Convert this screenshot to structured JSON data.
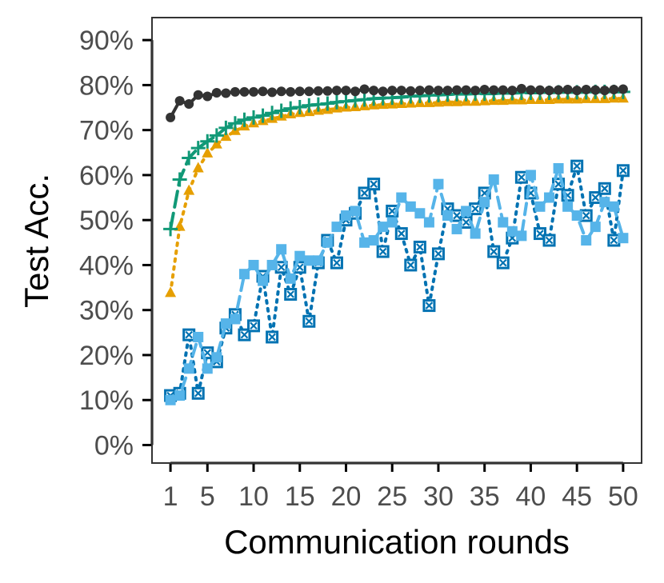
{
  "chart_data": {
    "type": "line",
    "title": "",
    "xlabel": "Communication rounds",
    "ylabel": "Test Acc.",
    "xlim": [
      -1,
      52
    ],
    "ylim": [
      -4,
      95
    ],
    "x_ticks": [
      1,
      5,
      10,
      15,
      20,
      25,
      30,
      35,
      40,
      45,
      50
    ],
    "y_ticks": [
      0,
      10,
      20,
      30,
      40,
      50,
      60,
      70,
      80,
      90
    ],
    "y_tick_labels": [
      "0%",
      "10%",
      "20%",
      "30%",
      "40%",
      "50%",
      "60%",
      "70%",
      "80%",
      "90%"
    ],
    "x": [
      1,
      2,
      3,
      4,
      5,
      6,
      7,
      8,
      9,
      10,
      11,
      12,
      13,
      14,
      15,
      16,
      17,
      18,
      19,
      20,
      21,
      22,
      23,
      24,
      25,
      26,
      27,
      28,
      29,
      30,
      31,
      32,
      33,
      34,
      35,
      36,
      37,
      38,
      39,
      40,
      41,
      42,
      43,
      44,
      45,
      46,
      47,
      48,
      49,
      50
    ],
    "series": [
      {
        "name": "black-circles",
        "color": "#333333",
        "marker": "circle",
        "dash": "solid",
        "values": [
          72.8,
          76.5,
          75.8,
          77.8,
          77.5,
          78.3,
          78.2,
          78.5,
          78.5,
          78.5,
          78.6,
          78.4,
          78.6,
          78.5,
          78.6,
          78.6,
          78.7,
          78.7,
          78.8,
          78.8,
          78.6,
          79.1,
          78.8,
          78.6,
          78.8,
          78.8,
          78.7,
          78.8,
          78.9,
          78.8,
          78.8,
          78.9,
          78.9,
          78.8,
          79.0,
          78.9,
          78.9,
          78.8,
          79.2,
          78.9,
          78.9,
          78.8,
          78.9,
          79.0,
          78.8,
          79.0,
          78.9,
          78.8,
          79.0,
          79.1
        ]
      },
      {
        "name": "green-crosses",
        "color": "#119977",
        "marker": "plus",
        "dash": "long-dash",
        "values": [
          48.0,
          59.0,
          63.8,
          66.0,
          67.5,
          68.8,
          70.5,
          71.5,
          72.3,
          72.8,
          73.2,
          73.8,
          74.3,
          74.8,
          75.1,
          75.5,
          75.7,
          75.9,
          76.2,
          76.4,
          76.6,
          76.8,
          77.0,
          77.1,
          77.2,
          77.3,
          77.5,
          77.6,
          77.7,
          77.8,
          77.9,
          78.0,
          78.0,
          78.1,
          78.1,
          78.1,
          78.2,
          78.2,
          78.3,
          78.3,
          78.3,
          78.3,
          78.4,
          78.4,
          78.4,
          78.4,
          78.5,
          78.5,
          78.5,
          78.5
        ]
      },
      {
        "name": "orange-triangles",
        "color": "#E69F00",
        "marker": "triangle",
        "dash": "dotted",
        "values": [
          33.8,
          48.5,
          56.5,
          61.5,
          64.8,
          66.8,
          68.5,
          69.8,
          70.8,
          71.5,
          72.0,
          72.5,
          73.0,
          73.5,
          73.8,
          74.0,
          74.3,
          74.5,
          74.8,
          75.0,
          75.1,
          75.3,
          75.5,
          75.6,
          75.7,
          75.8,
          75.9,
          76.0,
          76.0,
          76.1,
          76.2,
          76.2,
          76.3,
          76.3,
          76.4,
          76.5,
          76.5,
          76.6,
          76.6,
          76.7,
          76.7,
          76.7,
          76.8,
          76.8,
          76.8,
          76.9,
          76.9,
          76.9,
          77.0,
          77.0
        ]
      },
      {
        "name": "light-blue-squares",
        "color": "#56B4E9",
        "marker": "square",
        "dash": "dashed",
        "values": [
          10.0,
          11.0,
          17.0,
          24.0,
          17.0,
          19.5,
          27.0,
          28.0,
          38.0,
          40.0,
          36.5,
          40.0,
          43.5,
          37.0,
          42.0,
          41.0,
          41.0,
          45.0,
          48.5,
          51.0,
          52.0,
          45.0,
          45.5,
          48.5,
          49.5,
          55.0,
          53.0,
          51.5,
          49.5,
          58.0,
          51.0,
          48.0,
          52.0,
          47.0,
          54.0,
          59.0,
          49.5,
          47.5,
          46.5,
          60.0,
          53.0,
          55.0,
          61.5,
          53.0,
          51.0,
          45.5,
          48.5,
          54.0,
          53.0,
          46.0
        ]
      },
      {
        "name": "blue-boxed-x",
        "color": "#0072B2",
        "marker": "square-x",
        "dash": "dotted",
        "values": [
          11.0,
          11.5,
          24.5,
          11.5,
          20.5,
          18.5,
          26.0,
          29.0,
          24.5,
          26.5,
          37.5,
          24.0,
          39.5,
          33.5,
          39.5,
          27.5,
          40.5,
          45.5,
          40.5,
          50.0,
          51.5,
          56.0,
          58.0,
          43.0,
          52.0,
          47.0,
          40.0,
          44.0,
          31.0,
          42.5,
          52.5,
          51.0,
          49.5,
          52.5,
          56.0,
          43.0,
          40.5,
          46.0,
          59.5,
          56.0,
          47.0,
          45.5,
          58.0,
          55.5,
          62.0,
          51.0,
          55.0,
          57.0,
          45.5,
          61.0
        ]
      }
    ]
  }
}
